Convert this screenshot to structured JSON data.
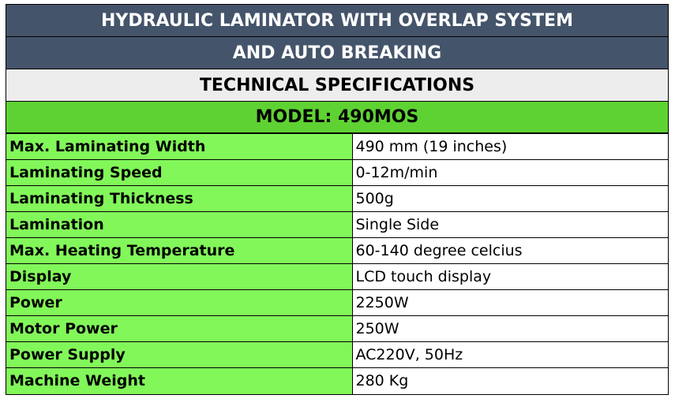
{
  "header": {
    "title_line1": "HYDRAULIC LAMINATOR WITH OVERLAP SYSTEM",
    "title_line2": "AND AUTO BREAKING",
    "subtitle": "TECHNICAL SPECIFICATIONS",
    "model": "MODEL: 490MOS"
  },
  "table": {
    "rows": [
      [
        "Max. Laminating Width",
        "490 mm (19 inches)"
      ],
      [
        "Laminating Speed",
        "0-12m/min"
      ],
      [
        "Laminating Thickness",
        "500g"
      ],
      [
        "Lamination",
        "Single Side"
      ],
      [
        "Max. Heating Temperature",
        "60-140 degree celcius"
      ],
      [
        "Display",
        "LCD touch display"
      ],
      [
        "Power",
        "2250W"
      ],
      [
        "Motor Power",
        "250W"
      ],
      [
        "Power Supply",
        "AC220V, 50Hz"
      ],
      [
        "Machine Weight",
        "280 Kg"
      ]
    ]
  }
}
